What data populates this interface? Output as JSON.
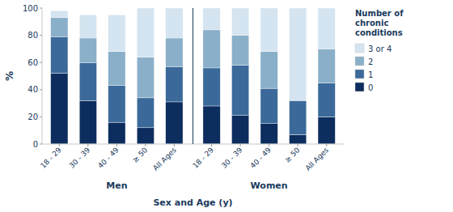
{
  "chart_data": {
    "type": "bar",
    "stacked": true,
    "categories": [
      "18 - 29",
      "30 - 39",
      "40 - 49",
      "≥ 50",
      "All Ages",
      "18 - 29",
      "30 - 39",
      "40 - 49",
      "≥ 50",
      "All Ages"
    ],
    "series": [
      {
        "name": "0",
        "color": "#0d2d5e",
        "values": [
          52,
          32,
          16,
          12,
          31,
          28,
          21,
          15,
          7,
          20
        ]
      },
      {
        "name": "1",
        "color": "#3b6a9a",
        "values": [
          27,
          28,
          27,
          22,
          26,
          28,
          37,
          26,
          25,
          25
        ]
      },
      {
        "name": "2",
        "color": "#8aafc9",
        "values": [
          14,
          18,
          25,
          30,
          21,
          28,
          22,
          27,
          0,
          25
        ]
      },
      {
        "name": "3 or 4",
        "color": "#d4e4f0",
        "values": [
          5,
          17,
          27,
          36,
          22,
          16,
          20,
          32,
          68,
          30
        ]
      }
    ],
    "annotations": [
      {
        "text": "Men"
      },
      {
        "text": "Women"
      }
    ],
    "x_label": "Sex and Age (y)",
    "y_label": "%",
    "legend_title": "Number of\nchronic\nconditions",
    "ylim": [
      0,
      100
    ],
    "yticks": [
      0,
      20,
      40,
      60,
      80,
      100
    ],
    "grid": false,
    "legend": "right"
  }
}
